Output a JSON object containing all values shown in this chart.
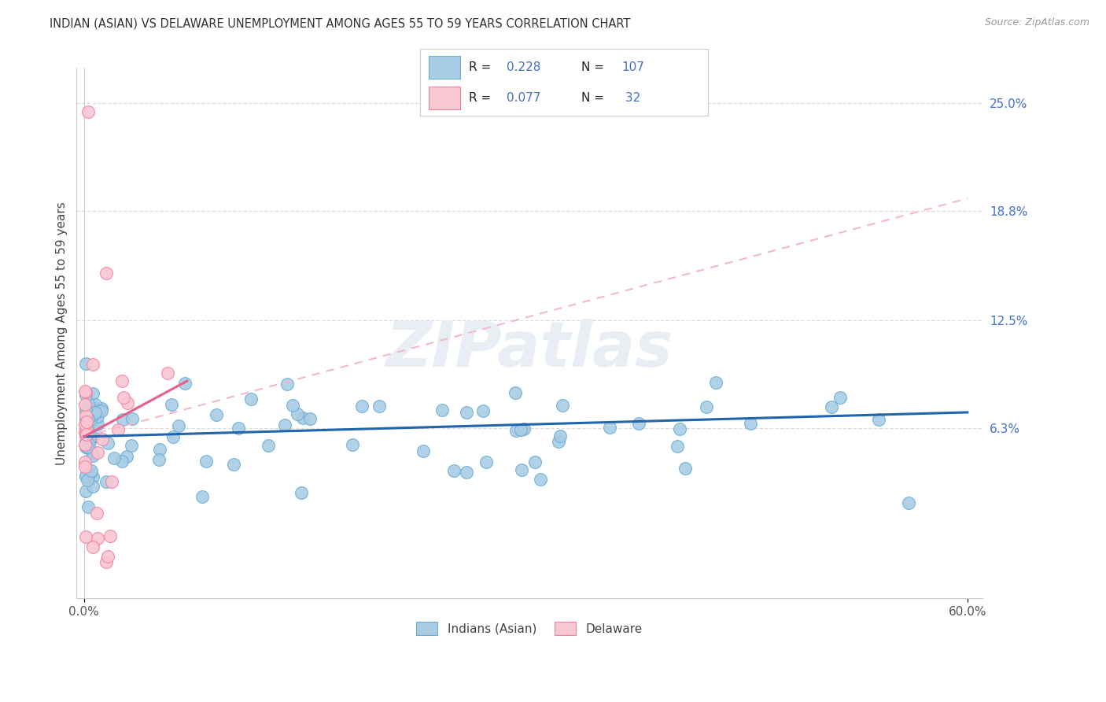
{
  "title": "INDIAN (ASIAN) VS DELAWARE UNEMPLOYMENT AMONG AGES 55 TO 59 YEARS CORRELATION CHART",
  "source": "Source: ZipAtlas.com",
  "ylabel": "Unemployment Among Ages 55 to 59 years",
  "xlim": [
    0.0,
    60.0
  ],
  "ylim": [
    0.0,
    25.0
  ],
  "blue_color": "#a8cce4",
  "blue_edge_color": "#6aaed6",
  "pink_color": "#f9c6d3",
  "pink_edge_color": "#f4829e",
  "blue_line_color": "#2166ac",
  "pink_line_color": "#e8608a",
  "pink_dash_color": "#f4b8cc",
  "title_fontsize": 11,
  "source_fontsize": 9,
  "legend_R1": "0.228",
  "legend_N1": "107",
  "legend_R2": "0.077",
  "legend_N2": "32",
  "legend_label1": "Indians (Asian)",
  "legend_label2": "Delaware",
  "ylabel_right_vals": [
    25.0,
    18.8,
    12.5,
    6.3
  ],
  "ylabel_right_labels": [
    "25.0%",
    "18.8%",
    "12.5%",
    "6.3%"
  ],
  "grid_color": "#dddddd",
  "watermark": "ZIPatlas",
  "blue_trend": [
    0.0,
    60.0,
    5.8,
    7.2
  ],
  "pink_trend_solid": [
    0.0,
    7.0,
    5.8,
    9.0
  ],
  "pink_trend_dash": [
    0.0,
    60.0,
    5.8,
    19.5
  ]
}
